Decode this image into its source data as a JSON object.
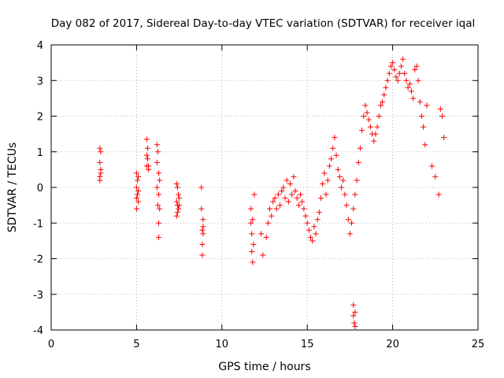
{
  "chart_data": {
    "type": "scatter",
    "title": "Day 082 of 2017, Sidereal Day-to-day VTEC variation (SDTVAR) for receiver iqal",
    "xlabel": "GPS time / hours",
    "ylabel": "SDTVAR / TECUs",
    "xlim": [
      0,
      25
    ],
    "ylim": [
      -4,
      4
    ],
    "xticks": [
      0,
      5,
      10,
      15,
      20,
      25
    ],
    "yticks": [
      -4,
      -3,
      -2,
      -1,
      0,
      1,
      2,
      3,
      4
    ],
    "grid": true,
    "marker": "+",
    "marker_color": "#ff0000",
    "series": [
      {
        "name": "SDTVAR",
        "x": [
          2.85,
          2.85,
          2.85,
          2.85,
          2.9,
          2.9,
          2.9,
          5.0,
          5.0,
          5.0,
          5.0,
          5.05,
          5.05,
          5.1,
          5.1,
          5.1,
          5.6,
          5.6,
          5.6,
          5.65,
          5.65,
          5.7,
          5.7,
          6.2,
          6.2,
          6.2,
          6.25,
          6.25,
          6.3,
          6.3,
          6.3,
          6.3,
          6.35,
          6.35,
          7.35,
          7.35,
          7.35,
          7.4,
          7.4,
          7.4,
          7.45,
          7.45,
          7.5,
          7.5,
          8.8,
          8.8,
          8.85,
          8.85,
          8.85,
          8.9,
          8.9,
          8.9,
          11.7,
          11.7,
          11.75,
          11.75,
          11.8,
          11.8,
          11.85,
          11.9,
          12.3,
          12.4,
          12.6,
          12.7,
          12.8,
          12.9,
          13.0,
          13.1,
          13.2,
          13.3,
          13.4,
          13.5,
          13.6,
          13.7,
          13.8,
          13.9,
          14.0,
          14.1,
          14.2,
          14.3,
          14.4,
          14.5,
          14.6,
          14.7,
          14.8,
          14.9,
          15.0,
          15.1,
          15.2,
          15.3,
          15.4,
          15.5,
          15.6,
          15.7,
          15.8,
          15.9,
          16.0,
          16.1,
          16.2,
          16.3,
          16.4,
          16.5,
          16.6,
          16.7,
          16.8,
          16.9,
          17.0,
          17.1,
          17.2,
          17.3,
          17.4,
          17.5,
          17.6,
          17.7,
          17.8,
          17.9,
          18.0,
          18.1,
          18.2,
          18.3,
          18.4,
          18.5,
          18.6,
          18.7,
          18.8,
          18.9,
          19.0,
          19.1,
          19.2,
          19.3,
          19.4,
          19.5,
          19.6,
          19.7,
          19.8,
          19.9,
          20.0,
          20.1,
          20.2,
          20.3,
          20.4,
          20.5,
          20.6,
          20.7,
          20.8,
          20.9,
          21.0,
          21.1,
          21.2,
          21.3,
          21.4,
          21.5,
          21.6,
          21.7,
          21.8,
          21.9,
          22.0,
          22.3,
          22.5,
          22.7,
          22.8,
          22.9,
          23.0,
          17.7,
          17.7,
          17.75,
          17.8,
          17.8
        ],
        "y": [
          1.1,
          0.7,
          0.3,
          0.2,
          1.0,
          0.5,
          0.4,
          0.4,
          0.0,
          -0.3,
          -0.6,
          0.2,
          -0.2,
          0.3,
          -0.1,
          -0.4,
          1.35,
          0.9,
          0.6,
          1.1,
          0.8,
          0.6,
          0.5,
          1.2,
          0.7,
          0.0,
          1.0,
          -0.5,
          0.4,
          -0.2,
          -1.0,
          -1.4,
          0.2,
          -0.6,
          0.1,
          -0.4,
          -0.8,
          0.0,
          -0.5,
          -0.7,
          -0.2,
          -0.6,
          -0.3,
          -0.5,
          0.0,
          -0.6,
          -1.2,
          -1.6,
          -1.9,
          -0.9,
          -1.3,
          -1.1,
          -0.6,
          -1.0,
          -1.3,
          -1.8,
          -2.1,
          -0.9,
          -1.6,
          -0.2,
          -1.3,
          -1.9,
          -1.4,
          -1.0,
          -0.6,
          -0.8,
          -0.4,
          -0.3,
          -0.6,
          -0.2,
          -0.5,
          -0.1,
          0.0,
          -0.3,
          0.2,
          -0.4,
          0.1,
          -0.2,
          0.3,
          -0.1,
          -0.3,
          -0.5,
          -0.2,
          -0.4,
          -0.6,
          -0.8,
          -1.0,
          -1.2,
          -1.4,
          -1.5,
          -1.1,
          -1.3,
          -0.9,
          -0.7,
          -0.3,
          0.1,
          0.4,
          -0.2,
          0.2,
          0.6,
          0.8,
          1.1,
          1.4,
          0.9,
          0.5,
          0.3,
          0.0,
          0.2,
          -0.2,
          -0.5,
          -0.9,
          -1.3,
          -1.0,
          -0.6,
          -0.2,
          0.2,
          0.7,
          1.1,
          1.6,
          2.0,
          2.3,
          2.1,
          1.9,
          1.7,
          1.5,
          1.3,
          1.5,
          1.7,
          2.0,
          2.3,
          2.4,
          2.6,
          2.8,
          3.0,
          3.2,
          3.4,
          3.5,
          3.3,
          3.1,
          3.0,
          3.2,
          3.4,
          3.6,
          3.2,
          3.0,
          2.8,
          2.9,
          2.7,
          2.5,
          3.3,
          3.4,
          3.0,
          2.4,
          2.0,
          1.7,
          1.2,
          2.3,
          0.6,
          0.3,
          -0.2,
          2.2,
          2.0,
          1.4,
          -3.3,
          -3.6,
          -3.8,
          -3.5,
          -3.9
        ]
      }
    ]
  }
}
